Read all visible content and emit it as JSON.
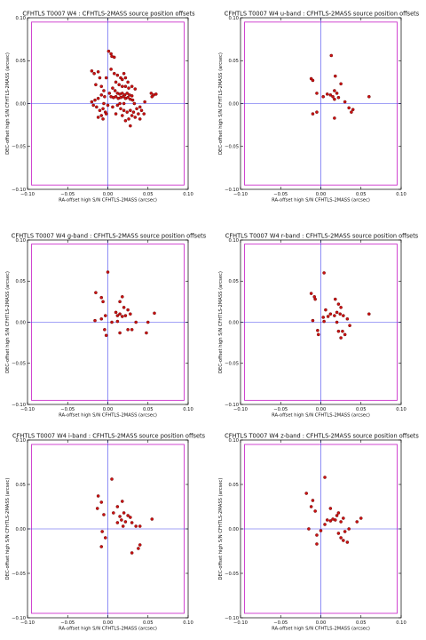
{
  "colors": {
    "frame": "#000000",
    "box": "#cc33cc",
    "cross": "#4444ee",
    "point": "#cc1111",
    "point_edge": "#550000"
  },
  "chart_data": [
    {
      "type": "scatter",
      "title": "CFHTLS T0007 W4 : CFHTLS-2MASS source position offsets",
      "xlabel": "RA-offset high S/N CFHTLS-2MASS (arcsec)",
      "ylabel": "DEC-offset high S/N CFHTLS-2MASS (arcsec)",
      "xlim": [
        -0.1,
        0.1
      ],
      "ylim": [
        -0.1,
        0.1
      ],
      "xticks": [
        "−0.10",
        "−0.05",
        "0.00",
        "0.05",
        "0.10"
      ],
      "yticks": [
        "0.10",
        "0.05",
        "0.00",
        "−0.05",
        "−0.10"
      ],
      "box": [
        -0.095,
        0.095,
        -0.095,
        0.095
      ],
      "points": [
        [
          -0.02,
          0.038
        ],
        [
          -0.017,
          0.035
        ],
        [
          -0.012,
          0.037
        ],
        [
          -0.01,
          0.03
        ],
        [
          -0.015,
          0.022
        ],
        [
          -0.008,
          0.02
        ],
        [
          -0.005,
          0.015
        ],
        [
          -0.002,
          0.03
        ],
        [
          0.001,
          0.061
        ],
        [
          0.004,
          0.058
        ],
        [
          0.005,
          0.055
        ],
        [
          0.008,
          0.054
        ],
        [
          0.004,
          0.04
        ],
        [
          0.008,
          0.035
        ],
        [
          0.012,
          0.033
        ],
        [
          0.016,
          0.03
        ],
        [
          0.018,
          0.028
        ],
        [
          0.02,
          0.035
        ],
        [
          0.022,
          0.03
        ],
        [
          0.025,
          0.025
        ],
        [
          0.01,
          0.025
        ],
        [
          0.014,
          0.022
        ],
        [
          0.018,
          0.02
        ],
        [
          0.022,
          0.02
        ],
        [
          0.026,
          0.018
        ],
        [
          0.03,
          0.02
        ],
        [
          0.034,
          0.017
        ],
        [
          0.006,
          0.018
        ],
        [
          0.009,
          0.015
        ],
        [
          0.012,
          0.012
        ],
        [
          0.015,
          0.011
        ],
        [
          0.018,
          0.012
        ],
        [
          0.021,
          0.01
        ],
        [
          0.024,
          0.012
        ],
        [
          0.027,
          0.01
        ],
        [
          0.03,
          0.009
        ],
        [
          0.002,
          0.012
        ],
        [
          0.004,
          0.008
        ],
        [
          0.007,
          0.007
        ],
        [
          0.01,
          0.008
        ],
        [
          0.013,
          0.006
        ],
        [
          0.016,
          0.007
        ],
        [
          0.019,
          0.008
        ],
        [
          0.022,
          0.006
        ],
        [
          0.025,
          0.007
        ],
        [
          0.028,
          0.005
        ],
        [
          0.031,
          0.004
        ],
        [
          -0.004,
          0.008
        ],
        [
          -0.008,
          0.01
        ],
        [
          -0.012,
          0.006
        ],
        [
          -0.016,
          0.004
        ],
        [
          -0.02,
          0.002
        ],
        [
          -0.018,
          -0.002
        ],
        [
          -0.014,
          -0.004
        ],
        [
          -0.01,
          -0.008
        ],
        [
          -0.006,
          -0.006
        ],
        [
          -0.003,
          -0.01
        ],
        [
          -0.008,
          -0.014
        ],
        [
          -0.012,
          -0.016
        ],
        [
          -0.006,
          -0.018
        ],
        [
          -0.002,
          -0.012
        ],
        [
          0.006,
          -0.004
        ],
        [
          0.012,
          -0.002
        ],
        [
          0.016,
          -0.006
        ],
        [
          0.02,
          -0.008
        ],
        [
          0.024,
          -0.01
        ],
        [
          0.028,
          -0.008
        ],
        [
          0.032,
          -0.01
        ],
        [
          0.036,
          -0.006
        ],
        [
          0.04,
          -0.004
        ],
        [
          0.038,
          -0.012
        ],
        [
          0.034,
          -0.016
        ],
        [
          0.03,
          -0.014
        ],
        [
          0.026,
          -0.018
        ],
        [
          0.022,
          -0.02
        ],
        [
          0.018,
          -0.014
        ],
        [
          0.04,
          -0.018
        ],
        [
          0.045,
          -0.012
        ],
        [
          0.028,
          -0.026
        ],
        [
          0.046,
          0.002
        ],
        [
          0.054,
          0.012
        ],
        [
          0.057,
          0.01
        ],
        [
          0.06,
          0.011
        ],
        [
          0.055,
          0.008
        ],
        [
          -0.005,
          0.0
        ],
        [
          0.0,
          -0.002
        ],
        [
          0.015,
          0.0
        ],
        [
          0.033,
          0.0
        ],
        [
          0.042,
          -0.008
        ],
        [
          0.01,
          -0.012
        ],
        [
          0.02,
          0.0
        ]
      ]
    },
    {
      "type": "scatter",
      "title": "CFHTLS T0007 W4 u-band : CFHTLS-2MASS source position offsets",
      "xlabel": "RA-offset high S/N CFHTLS-2MASS (arcsec)",
      "ylabel": "DEC-offset high S/N CFHTLS-2MASS (arcsec)",
      "xlim": [
        -0.1,
        0.1
      ],
      "ylim": [
        -0.1,
        0.1
      ],
      "xticks": [
        "−0.10",
        "−0.05",
        "0.00",
        "0.05",
        "0.10"
      ],
      "yticks": [
        "0.10",
        "0.05",
        "0.00",
        "−0.05",
        "−0.10"
      ],
      "box": [
        -0.095,
        0.095,
        -0.095,
        0.095
      ],
      "points": [
        [
          -0.012,
          0.029
        ],
        [
          -0.01,
          0.027
        ],
        [
          0.013,
          0.056
        ],
        [
          0.018,
          0.032
        ],
        [
          0.025,
          0.023
        ],
        [
          0.02,
          0.012
        ],
        [
          0.017,
          0.015
        ],
        [
          0.012,
          0.01
        ],
        [
          0.008,
          0.011
        ],
        [
          0.015,
          0.008
        ],
        [
          0.022,
          0.007
        ],
        [
          0.017,
          0.005
        ],
        [
          -0.005,
          0.012
        ],
        [
          0.003,
          0.008
        ],
        [
          0.03,
          0.002
        ],
        [
          0.035,
          -0.005
        ],
        [
          0.038,
          -0.01
        ],
        [
          0.04,
          -0.007
        ],
        [
          -0.01,
          -0.012
        ],
        [
          -0.005,
          -0.01
        ],
        [
          0.017,
          -0.017
        ],
        [
          0.06,
          0.008
        ]
      ]
    },
    {
      "type": "scatter",
      "title": "CFHTLS T0007 W4 g-band : CFHTLS-2MASS source position offsets",
      "xlabel": "RA-offset high S/N CFHTLS-2MASS (arcsec)",
      "ylabel": "DEC-offset high S/N CFHTLS-2MASS (arcsec)",
      "xlim": [
        -0.1,
        0.1
      ],
      "ylim": [
        -0.1,
        0.1
      ],
      "xticks": [
        "−0.10",
        "−0.05",
        "0.00",
        "0.05",
        "0.10"
      ],
      "yticks": [
        "0.10",
        "0.05",
        "0.00",
        "−0.05",
        "−0.10"
      ],
      "box": [
        -0.095,
        0.095,
        -0.095,
        0.095
      ],
      "points": [
        [
          -0.015,
          0.036
        ],
        [
          -0.008,
          0.03
        ],
        [
          -0.006,
          0.025
        ],
        [
          0.0,
          0.061
        ],
        [
          0.018,
          0.031
        ],
        [
          0.015,
          0.025
        ],
        [
          0.02,
          0.018
        ],
        [
          0.025,
          0.015
        ],
        [
          0.01,
          0.012
        ],
        [
          0.015,
          0.01
        ],
        [
          0.012,
          0.008
        ],
        [
          0.018,
          0.007
        ],
        [
          0.022,
          0.008
        ],
        [
          0.028,
          0.01
        ],
        [
          -0.003,
          0.008
        ],
        [
          -0.008,
          0.004
        ],
        [
          -0.016,
          0.002
        ],
        [
          0.005,
          0.0
        ],
        [
          0.012,
          0.001
        ],
        [
          0.035,
          0.0
        ],
        [
          0.05,
          0.0
        ],
        [
          0.058,
          0.011
        ],
        [
          -0.004,
          -0.009
        ],
        [
          -0.002,
          -0.016
        ],
        [
          0.015,
          -0.013
        ],
        [
          0.025,
          -0.009
        ],
        [
          0.03,
          -0.009
        ],
        [
          0.048,
          -0.013
        ]
      ]
    },
    {
      "type": "scatter",
      "title": "CFHTLS T0007 W4 r-band : CFHTLS-2MASS source position offsets",
      "xlabel": "RA-offset high S/N CFHTLS-2MASS (arcsec)",
      "ylabel": "DEC-offset high S/N CFHTLS-2MASS (arcsec)",
      "xlim": [
        -0.1,
        0.1
      ],
      "ylim": [
        -0.1,
        0.1
      ],
      "xticks": [
        "−0.10",
        "−0.05",
        "0.00",
        "0.05",
        "0.10"
      ],
      "yticks": [
        "0.10",
        "0.05",
        "0.00",
        "−0.05",
        "−0.10"
      ],
      "box": [
        -0.095,
        0.095,
        -0.095,
        0.095
      ],
      "points": [
        [
          -0.012,
          0.035
        ],
        [
          -0.008,
          0.031
        ],
        [
          -0.007,
          0.028
        ],
        [
          0.004,
          0.06
        ],
        [
          0.018,
          0.028
        ],
        [
          0.022,
          0.022
        ],
        [
          0.025,
          0.018
        ],
        [
          0.006,
          0.015
        ],
        [
          0.012,
          0.01
        ],
        [
          0.017,
          0.008
        ],
        [
          0.02,
          0.012
        ],
        [
          0.024,
          0.01
        ],
        [
          0.028,
          0.008
        ],
        [
          0.009,
          0.007
        ],
        [
          0.003,
          0.006
        ],
        [
          -0.01,
          0.002
        ],
        [
          0.004,
          0.001
        ],
        [
          0.02,
          0.0
        ],
        [
          0.033,
          0.004
        ],
        [
          0.036,
          -0.004
        ],
        [
          0.06,
          0.01
        ],
        [
          -0.004,
          -0.01
        ],
        [
          -0.003,
          -0.015
        ],
        [
          0.022,
          -0.011
        ],
        [
          0.027,
          -0.011
        ],
        [
          0.03,
          -0.015
        ],
        [
          0.025,
          -0.019
        ]
      ]
    },
    {
      "type": "scatter",
      "title": "CFHTLS T0007 W4 i-band : CFHTLS-2MASS source position offsets",
      "xlabel": "RA-offset high S/N CFHTLS-2MASS (arcsec)",
      "ylabel": "DEC-offset high S/N CFHTLS-2MASS (arcsec)",
      "xlim": [
        -0.1,
        0.1
      ],
      "ylim": [
        -0.1,
        0.1
      ],
      "xticks": [
        "−0.10",
        "−0.05",
        "0.00",
        "0.05",
        "0.10"
      ],
      "yticks": [
        "0.10",
        "0.05",
        "0.00",
        "−0.05",
        "−0.10"
      ],
      "box": [
        -0.095,
        0.095,
        -0.095,
        0.095
      ],
      "points": [
        [
          0.005,
          0.056
        ],
        [
          -0.012,
          0.037
        ],
        [
          -0.008,
          0.03
        ],
        [
          -0.013,
          0.023
        ],
        [
          0.018,
          0.031
        ],
        [
          0.012,
          0.025
        ],
        [
          0.02,
          0.018
        ],
        [
          0.025,
          0.015
        ],
        [
          0.015,
          0.014
        ],
        [
          0.017,
          0.01
        ],
        [
          0.022,
          0.008
        ],
        [
          0.03,
          0.007
        ],
        [
          0.035,
          0.003
        ],
        [
          0.04,
          0.003
        ],
        [
          0.055,
          0.011
        ],
        [
          0.028,
          0.013
        ],
        [
          -0.005,
          0.016
        ],
        [
          0.007,
          0.018
        ],
        [
          0.012,
          0.007
        ],
        [
          0.019,
          0.003
        ],
        [
          -0.007,
          -0.003
        ],
        [
          -0.003,
          -0.01
        ],
        [
          -0.008,
          -0.02
        ],
        [
          0.03,
          -0.027
        ],
        [
          0.038,
          -0.022
        ],
        [
          0.04,
          -0.018
        ]
      ]
    },
    {
      "type": "scatter",
      "title": "CFHTLS T0007 W4 z-band : CFHTLS-2MASS source position offsets",
      "xlabel": "RA-offset high S/N CFHTLS-2MASS (arcsec)",
      "ylabel": "DEC-offset high S/N CFHTLS-2MASS (arcsec)",
      "xlim": [
        -0.1,
        0.1
      ],
      "ylim": [
        -0.1,
        0.1
      ],
      "xticks": [
        "−0.10",
        "−0.05",
        "0.00",
        "0.05",
        "0.10"
      ],
      "yticks": [
        "0.10",
        "0.05",
        "0.00",
        "−0.05",
        "−0.10"
      ],
      "box": [
        -0.095,
        0.095,
        -0.095,
        0.095
      ],
      "points": [
        [
          -0.018,
          0.04
        ],
        [
          -0.01,
          0.032
        ],
        [
          0.005,
          0.058
        ],
        [
          -0.012,
          0.025
        ],
        [
          -0.007,
          0.02
        ],
        [
          0.012,
          0.023
        ],
        [
          0.02,
          0.015
        ],
        [
          0.022,
          0.018
        ],
        [
          0.015,
          0.011
        ],
        [
          0.018,
          0.01
        ],
        [
          0.025,
          0.008
        ],
        [
          0.008,
          0.01
        ],
        [
          0.012,
          0.009
        ],
        [
          0.028,
          0.012
        ],
        [
          0.005,
          0.005
        ],
        [
          0.045,
          0.008
        ],
        [
          0.05,
          0.012
        ],
        [
          -0.015,
          0.0
        ],
        [
          0.0,
          -0.002
        ],
        [
          0.03,
          -0.003
        ],
        [
          0.035,
          0.0
        ],
        [
          -0.005,
          -0.007
        ],
        [
          -0.005,
          -0.017
        ],
        [
          0.025,
          -0.01
        ],
        [
          0.028,
          -0.013
        ],
        [
          0.033,
          -0.015
        ],
        [
          0.022,
          -0.005
        ]
      ]
    }
  ]
}
